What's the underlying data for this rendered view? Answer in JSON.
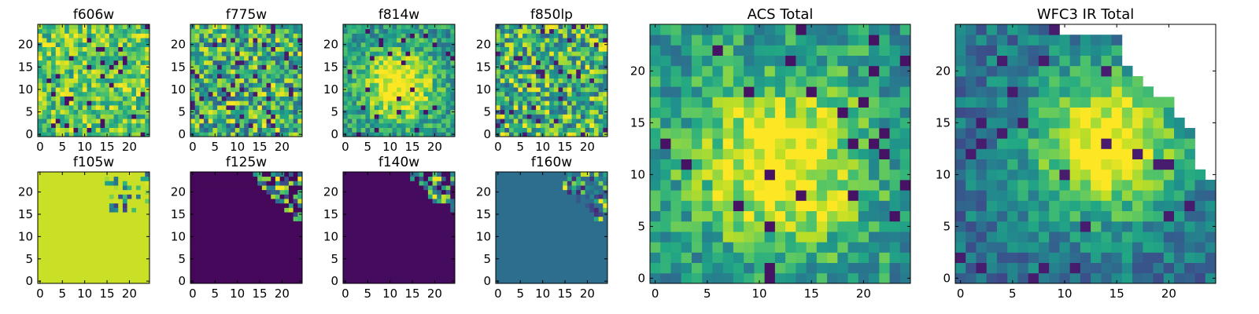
{
  "figure": {
    "description_free": true
  },
  "chart_data": [
    {
      "type": "heatmap",
      "title": "f606w",
      "xticks": [
        "0",
        "5",
        "10",
        "15",
        "20"
      ],
      "yticks": [
        "0",
        "5",
        "10",
        "15",
        "20"
      ],
      "xlim": [
        0,
        25
      ],
      "ylim": [
        0,
        25
      ],
      "grid_size": 25,
      "seed": 11,
      "pattern": "noise_high",
      "nan_mask": "none"
    },
    {
      "type": "heatmap",
      "title": "f775w",
      "xticks": [
        "0",
        "5",
        "10",
        "15",
        "20"
      ],
      "yticks": [
        "0",
        "5",
        "10",
        "15",
        "20"
      ],
      "xlim": [
        0,
        25
      ],
      "ylim": [
        0,
        25
      ],
      "grid_size": 25,
      "seed": 23,
      "pattern": "noise_mid",
      "nan_mask": "none"
    },
    {
      "type": "heatmap",
      "title": "f814w",
      "xticks": [
        "0",
        "5",
        "10",
        "15",
        "20"
      ],
      "yticks": [
        "0",
        "5",
        "10",
        "15",
        "20"
      ],
      "xlim": [
        0,
        25
      ],
      "ylim": [
        0,
        25
      ],
      "grid_size": 25,
      "seed": 37,
      "pattern": "blob",
      "nan_mask": "none"
    },
    {
      "type": "heatmap",
      "title": "f850lp",
      "xticks": [
        "0",
        "5",
        "10",
        "15",
        "20"
      ],
      "yticks": [
        "0",
        "5",
        "10",
        "15",
        "20"
      ],
      "xlim": [
        0,
        25
      ],
      "ylim": [
        0,
        25
      ],
      "grid_size": 25,
      "seed": 41,
      "pattern": "noise_mid",
      "nan_mask": "none"
    },
    {
      "type": "heatmap",
      "title": "ACS Total",
      "xticks": [
        "0",
        "5",
        "10",
        "15",
        "20"
      ],
      "yticks": [
        "0",
        "5",
        "10",
        "15",
        "20"
      ],
      "xlim": [
        0,
        25
      ],
      "ylim": [
        0,
        25
      ],
      "grid_size": 25,
      "seed": 53,
      "pattern": "blob",
      "nan_mask": "none"
    },
    {
      "type": "heatmap",
      "title": "WFC3 IR Total",
      "xticks": [
        "0",
        "5",
        "10",
        "15",
        "20"
      ],
      "yticks": [
        "0",
        "5",
        "10",
        "15",
        "20"
      ],
      "xlim": [
        0,
        25
      ],
      "ylim": [
        0,
        25
      ],
      "grid_size": 25,
      "seed": 67,
      "pattern": "blob_ir",
      "nan_mask": "top_right"
    },
    {
      "type": "heatmap",
      "title": "f105w",
      "xticks": [
        "0",
        "5",
        "10",
        "15",
        "20"
      ],
      "yticks": [
        "0",
        "5",
        "10",
        "15",
        "20"
      ],
      "xlim": [
        0,
        25
      ],
      "ylim": [
        0,
        25
      ],
      "grid_size": 25,
      "seed": 71,
      "pattern": "flat_yellow_corner",
      "nan_mask": "none"
    },
    {
      "type": "heatmap",
      "title": "f125w",
      "xticks": [
        "0",
        "5",
        "10",
        "15",
        "20"
      ],
      "yticks": [
        "0",
        "5",
        "10",
        "15",
        "20"
      ],
      "xlim": [
        0,
        25
      ],
      "ylim": [
        0,
        25
      ],
      "grid_size": 25,
      "seed": 83,
      "pattern": "flat_purple_corner",
      "nan_mask": "none"
    },
    {
      "type": "heatmap",
      "title": "f140w",
      "xticks": [
        "0",
        "5",
        "10",
        "15",
        "20"
      ],
      "yticks": [
        "0",
        "5",
        "10",
        "15",
        "20"
      ],
      "xlim": [
        0,
        25
      ],
      "ylim": [
        0,
        25
      ],
      "grid_size": 25,
      "seed": 97,
      "pattern": "flat_purple_corner2",
      "nan_mask": "none"
    },
    {
      "type": "heatmap",
      "title": "f160w",
      "xticks": [
        "0",
        "5",
        "10",
        "15",
        "20"
      ],
      "yticks": [
        "0",
        "5",
        "10",
        "15",
        "20"
      ],
      "xlim": [
        0,
        25
      ],
      "ylim": [
        0,
        25
      ],
      "grid_size": 25,
      "seed": 101,
      "pattern": "flat_teal_corner",
      "nan_mask": "none"
    }
  ],
  "colors": {
    "colormap": "viridis",
    "axes": "#000000",
    "background": "#ffffff"
  }
}
